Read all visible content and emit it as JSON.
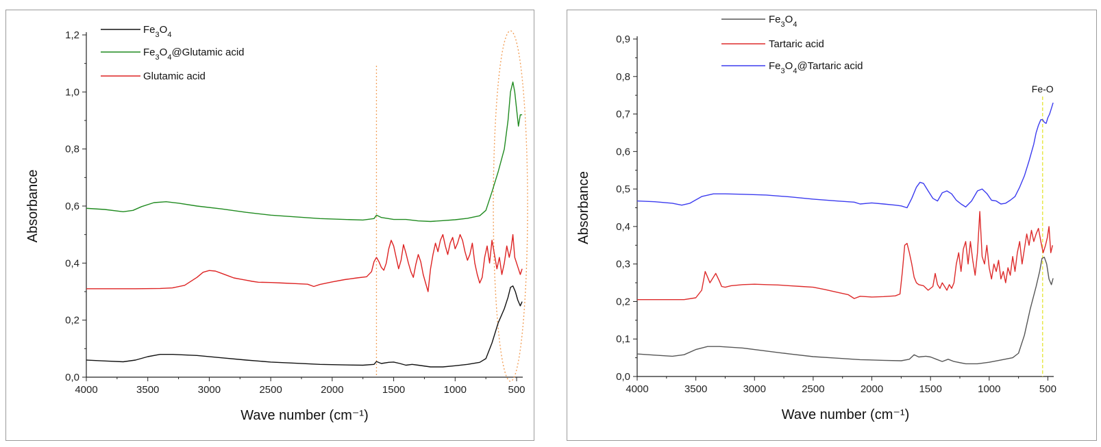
{
  "colors": {
    "fe3o4_left": "#111111",
    "fe3o4_right": "#555555",
    "fe3o4_glutamic": "#1f8a1f",
    "glutamic": "#dd2222",
    "tartaric": "#dd2a2a",
    "fe3o4_tartaric": "#3b3bef",
    "marker_orange": "#f2a05a",
    "marker_yellow": "#e8e84a"
  },
  "chart_data": [
    {
      "type": "line",
      "title": "",
      "xlabel": "Wave number (cm⁻¹)",
      "ylabel": "Absorbance",
      "xlim": [
        4000,
        450
      ],
      "ylim": [
        0.0,
        1.2
      ],
      "x_ticks": [
        "4000",
        "3500",
        "3000",
        "2500",
        "2000",
        "1500",
        "1000",
        "500"
      ],
      "y_ticks": [
        "0,0",
        "0,2",
        "0,4",
        "0,6",
        "0,8",
        "1,0",
        "1,2"
      ],
      "legend_position": "top-left",
      "annotations": [
        {
          "type": "vertical-dotted-line",
          "x": 1640,
          "color": "orange"
        },
        {
          "type": "dotted-ellipse",
          "x_center": 550,
          "color": "orange"
        }
      ],
      "series": [
        {
          "name": "Fe3O4",
          "legend_parts": [
            [
              "Fe",
              ""
            ],
            [
              "3",
              "sub"
            ],
            [
              "O",
              ""
            ],
            [
              "4",
              "sub"
            ]
          ],
          "color_key": "fe3o4_left",
          "x": [
            4000,
            3850,
            3700,
            3600,
            3500,
            3400,
            3300,
            3100,
            2900,
            2700,
            2500,
            2300,
            2100,
            1900,
            1750,
            1660,
            1640,
            1600,
            1540,
            1500,
            1450,
            1400,
            1350,
            1300,
            1200,
            1100,
            1000,
            900,
            800,
            750,
            700,
            650,
            600,
            570,
            550,
            530,
            510,
            490,
            470,
            455
          ],
          "y": [
            0.06,
            0.057,
            0.054,
            0.06,
            0.072,
            0.08,
            0.08,
            0.076,
            0.068,
            0.06,
            0.053,
            0.049,
            0.045,
            0.043,
            0.042,
            0.045,
            0.055,
            0.048,
            0.052,
            0.053,
            0.048,
            0.042,
            0.045,
            0.042,
            0.036,
            0.036,
            0.04,
            0.045,
            0.052,
            0.065,
            0.12,
            0.19,
            0.24,
            0.28,
            0.315,
            0.32,
            0.3,
            0.27,
            0.25,
            0.265
          ]
        },
        {
          "name": "Fe3O4@Glutamic acid",
          "legend_parts": [
            [
              "Fe",
              ""
            ],
            [
              "3",
              "sub"
            ],
            [
              "O",
              ""
            ],
            [
              "4",
              "sub"
            ],
            [
              "@Glutamic acid",
              ""
            ]
          ],
          "color_key": "fe3o4_glutamic",
          "x": [
            4000,
            3850,
            3700,
            3620,
            3550,
            3450,
            3350,
            3250,
            3100,
            2900,
            2700,
            2500,
            2300,
            2100,
            1900,
            1750,
            1660,
            1640,
            1600,
            1500,
            1400,
            1300,
            1200,
            1100,
            1000,
            900,
            800,
            750,
            700,
            650,
            600,
            570,
            550,
            530,
            515,
            500,
            485,
            470,
            455
          ],
          "y": [
            0.592,
            0.588,
            0.58,
            0.585,
            0.598,
            0.612,
            0.615,
            0.61,
            0.6,
            0.59,
            0.578,
            0.568,
            0.562,
            0.556,
            0.553,
            0.551,
            0.556,
            0.568,
            0.56,
            0.553,
            0.553,
            0.548,
            0.546,
            0.549,
            0.552,
            0.557,
            0.566,
            0.585,
            0.65,
            0.72,
            0.8,
            0.9,
            1.0,
            1.035,
            1.0,
            0.94,
            0.88,
            0.92,
            0.92
          ]
        },
        {
          "name": "Glutamic acid",
          "legend_parts": [
            [
              "Glutamic acid",
              ""
            ]
          ],
          "color_key": "glutamic",
          "x": [
            4000,
            3800,
            3600,
            3400,
            3300,
            3200,
            3100,
            3050,
            3000,
            2950,
            2900,
            2850,
            2800,
            2750,
            2700,
            2650,
            2600,
            2500,
            2400,
            2300,
            2200,
            2150,
            2100,
            2000,
            1900,
            1800,
            1720,
            1680,
            1660,
            1640,
            1620,
            1600,
            1580,
            1560,
            1540,
            1520,
            1500,
            1480,
            1460,
            1440,
            1420,
            1400,
            1380,
            1360,
            1340,
            1320,
            1300,
            1280,
            1260,
            1240,
            1220,
            1200,
            1180,
            1160,
            1140,
            1120,
            1100,
            1080,
            1060,
            1040,
            1020,
            1000,
            980,
            960,
            940,
            920,
            900,
            880,
            860,
            840,
            820,
            800,
            780,
            760,
            740,
            720,
            700,
            680,
            660,
            640,
            620,
            600,
            580,
            560,
            545,
            530,
            515,
            500,
            485,
            470,
            455
          ],
          "y": [
            0.31,
            0.31,
            0.31,
            0.311,
            0.313,
            0.322,
            0.35,
            0.368,
            0.374,
            0.372,
            0.364,
            0.356,
            0.348,
            0.344,
            0.34,
            0.336,
            0.333,
            0.332,
            0.33,
            0.328,
            0.326,
            0.318,
            0.325,
            0.334,
            0.342,
            0.348,
            0.352,
            0.37,
            0.405,
            0.42,
            0.405,
            0.385,
            0.375,
            0.4,
            0.45,
            0.48,
            0.46,
            0.42,
            0.38,
            0.41,
            0.465,
            0.435,
            0.4,
            0.37,
            0.35,
            0.395,
            0.43,
            0.405,
            0.36,
            0.33,
            0.3,
            0.38,
            0.43,
            0.47,
            0.44,
            0.48,
            0.5,
            0.46,
            0.43,
            0.47,
            0.49,
            0.45,
            0.47,
            0.5,
            0.48,
            0.44,
            0.41,
            0.43,
            0.47,
            0.4,
            0.36,
            0.33,
            0.35,
            0.42,
            0.46,
            0.4,
            0.48,
            0.43,
            0.38,
            0.42,
            0.36,
            0.4,
            0.46,
            0.42,
            0.45,
            0.5,
            0.42,
            0.4,
            0.38,
            0.36,
            0.38
          ]
        }
      ]
    },
    {
      "type": "line",
      "title": "",
      "xlabel": "Wave number (cm⁻¹)",
      "ylabel": "Absorbance",
      "xlim": [
        4000,
        450
      ],
      "ylim": [
        0.0,
        0.9
      ],
      "x_ticks": [
        "4000",
        "3500",
        "3000",
        "2500",
        "2000",
        "1500",
        "1000",
        "500"
      ],
      "y_ticks": [
        "0,0",
        "0,1",
        "0,2",
        "0,3",
        "0,4",
        "0,5",
        "0,6",
        "0,7",
        "0,8",
        "0,9"
      ],
      "legend_position": "top-left",
      "annotations": [
        {
          "type": "vertical-dashed-line",
          "x": 545,
          "color": "yellow",
          "label": "Fe-O"
        }
      ],
      "series": [
        {
          "name": "Fe3O4",
          "legend_parts": [
            [
              "Fe",
              ""
            ],
            [
              "3",
              "sub"
            ],
            [
              "O",
              ""
            ],
            [
              "4",
              "sub"
            ]
          ],
          "color_key": "fe3o4_right",
          "x": [
            4000,
            3850,
            3700,
            3600,
            3500,
            3400,
            3300,
            3100,
            2900,
            2700,
            2500,
            2300,
            2100,
            1900,
            1750,
            1680,
            1640,
            1600,
            1540,
            1500,
            1450,
            1400,
            1350,
            1300,
            1200,
            1100,
            1000,
            900,
            800,
            750,
            700,
            650,
            600,
            570,
            550,
            530,
            510,
            490,
            470,
            455
          ],
          "y": [
            0.06,
            0.057,
            0.054,
            0.058,
            0.072,
            0.08,
            0.08,
            0.076,
            0.068,
            0.06,
            0.053,
            0.049,
            0.045,
            0.043,
            0.042,
            0.046,
            0.058,
            0.052,
            0.054,
            0.052,
            0.046,
            0.04,
            0.046,
            0.04,
            0.034,
            0.034,
            0.038,
            0.044,
            0.05,
            0.062,
            0.11,
            0.18,
            0.24,
            0.28,
            0.315,
            0.318,
            0.3,
            0.26,
            0.245,
            0.262
          ]
        },
        {
          "name": "Tartaric acid",
          "legend_parts": [
            [
              "Tartaric acid",
              ""
            ]
          ],
          "color_key": "tartaric",
          "x": [
            4000,
            3800,
            3600,
            3500,
            3450,
            3420,
            3400,
            3380,
            3360,
            3330,
            3300,
            3280,
            3250,
            3200,
            3100,
            3000,
            2900,
            2800,
            2700,
            2600,
            2500,
            2400,
            2300,
            2200,
            2150,
            2100,
            2000,
            1900,
            1800,
            1760,
            1740,
            1720,
            1700,
            1680,
            1660,
            1640,
            1620,
            1600,
            1560,
            1520,
            1480,
            1460,
            1440,
            1420,
            1400,
            1380,
            1360,
            1340,
            1320,
            1300,
            1280,
            1260,
            1240,
            1220,
            1200,
            1180,
            1160,
            1140,
            1120,
            1100,
            1080,
            1060,
            1040,
            1020,
            1000,
            980,
            960,
            940,
            920,
            900,
            880,
            860,
            840,
            820,
            800,
            780,
            760,
            740,
            720,
            700,
            680,
            660,
            640,
            620,
            600,
            580,
            560,
            540,
            520,
            505,
            490,
            475,
            460
          ],
          "y": [
            0.205,
            0.205,
            0.205,
            0.21,
            0.23,
            0.28,
            0.265,
            0.25,
            0.26,
            0.275,
            0.255,
            0.24,
            0.238,
            0.242,
            0.245,
            0.246,
            0.245,
            0.244,
            0.242,
            0.24,
            0.238,
            0.232,
            0.225,
            0.218,
            0.208,
            0.214,
            0.212,
            0.213,
            0.215,
            0.22,
            0.28,
            0.35,
            0.355,
            0.33,
            0.3,
            0.265,
            0.25,
            0.245,
            0.242,
            0.23,
            0.24,
            0.275,
            0.245,
            0.235,
            0.25,
            0.24,
            0.23,
            0.245,
            0.235,
            0.25,
            0.3,
            0.33,
            0.28,
            0.34,
            0.36,
            0.3,
            0.36,
            0.31,
            0.27,
            0.33,
            0.44,
            0.32,
            0.3,
            0.35,
            0.29,
            0.26,
            0.3,
            0.28,
            0.31,
            0.26,
            0.28,
            0.25,
            0.29,
            0.27,
            0.32,
            0.28,
            0.33,
            0.36,
            0.3,
            0.34,
            0.38,
            0.35,
            0.39,
            0.36,
            0.38,
            0.395,
            0.36,
            0.33,
            0.35,
            0.37,
            0.4,
            0.33,
            0.35
          ]
        },
        {
          "name": "Fe3O4@Tartaric acid",
          "legend_parts": [
            [
              "Fe",
              ""
            ],
            [
              "3",
              "sub"
            ],
            [
              "O",
              ""
            ],
            [
              "4",
              "sub"
            ],
            [
              "@Tartaric acid",
              ""
            ]
          ],
          "color_key": "fe3o4_tartaric",
          "x": [
            4000,
            3850,
            3700,
            3620,
            3550,
            3450,
            3350,
            3250,
            3100,
            2900,
            2700,
            2500,
            2300,
            2150,
            2100,
            2000,
            1900,
            1800,
            1750,
            1700,
            1660,
            1620,
            1590,
            1560,
            1520,
            1480,
            1440,
            1400,
            1360,
            1320,
            1280,
            1240,
            1200,
            1150,
            1100,
            1060,
            1020,
            980,
            940,
            900,
            860,
            820,
            780,
            740,
            700,
            660,
            620,
            600,
            580,
            560,
            545,
            530,
            515,
            500,
            485,
            470,
            455
          ],
          "y": [
            0.468,
            0.466,
            0.462,
            0.457,
            0.462,
            0.48,
            0.487,
            0.487,
            0.486,
            0.484,
            0.479,
            0.473,
            0.468,
            0.465,
            0.46,
            0.463,
            0.46,
            0.457,
            0.455,
            0.45,
            0.475,
            0.505,
            0.518,
            0.515,
            0.495,
            0.475,
            0.468,
            0.49,
            0.495,
            0.487,
            0.47,
            0.46,
            0.452,
            0.468,
            0.495,
            0.5,
            0.488,
            0.47,
            0.468,
            0.46,
            0.462,
            0.47,
            0.48,
            0.505,
            0.535,
            0.575,
            0.62,
            0.65,
            0.67,
            0.685,
            0.685,
            0.678,
            0.675,
            0.69,
            0.7,
            0.715,
            0.73
          ]
        }
      ]
    }
  ]
}
